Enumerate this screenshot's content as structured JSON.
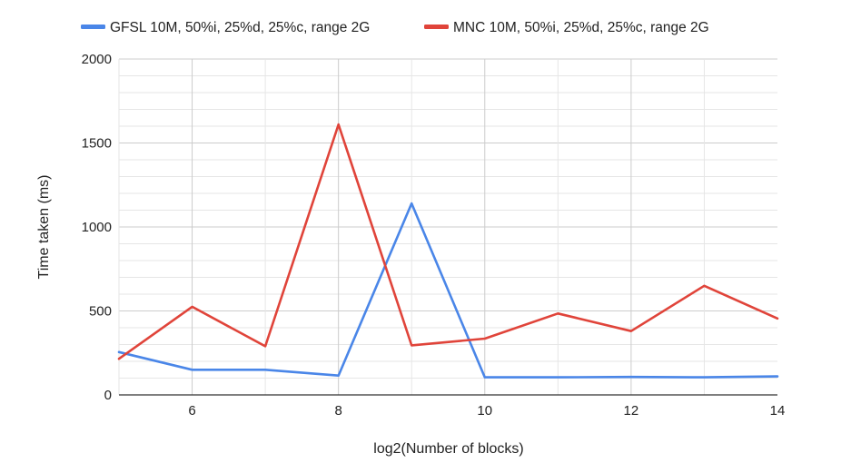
{
  "chart_data": {
    "type": "line",
    "xlabel": "log2(Number of blocks)",
    "ylabel": "Time taken (ms)",
    "x": [
      5,
      6,
      7,
      8,
      9,
      10,
      11,
      12,
      13,
      14
    ],
    "xlim": [
      5,
      14
    ],
    "ylim": [
      0,
      2000
    ],
    "xticks": [
      6,
      8,
      10,
      12,
      14
    ],
    "yticks": [
      0,
      500,
      1000,
      1500,
      2000
    ],
    "grid": true,
    "legend_position": "top",
    "series": [
      {
        "name": "GFSL 10M, 50%i, 25%d, 25%c, range 2G",
        "color": "#4a86e8",
        "values": [
          255,
          150,
          150,
          115,
          1140,
          105,
          105,
          107,
          105,
          110
        ]
      },
      {
        "name": "MNC 10M, 50%i, 25%d, 25%c, range 2G",
        "color": "#e0443a",
        "values": [
          215,
          525,
          290,
          1610,
          295,
          335,
          485,
          380,
          650,
          455
        ]
      }
    ]
  }
}
